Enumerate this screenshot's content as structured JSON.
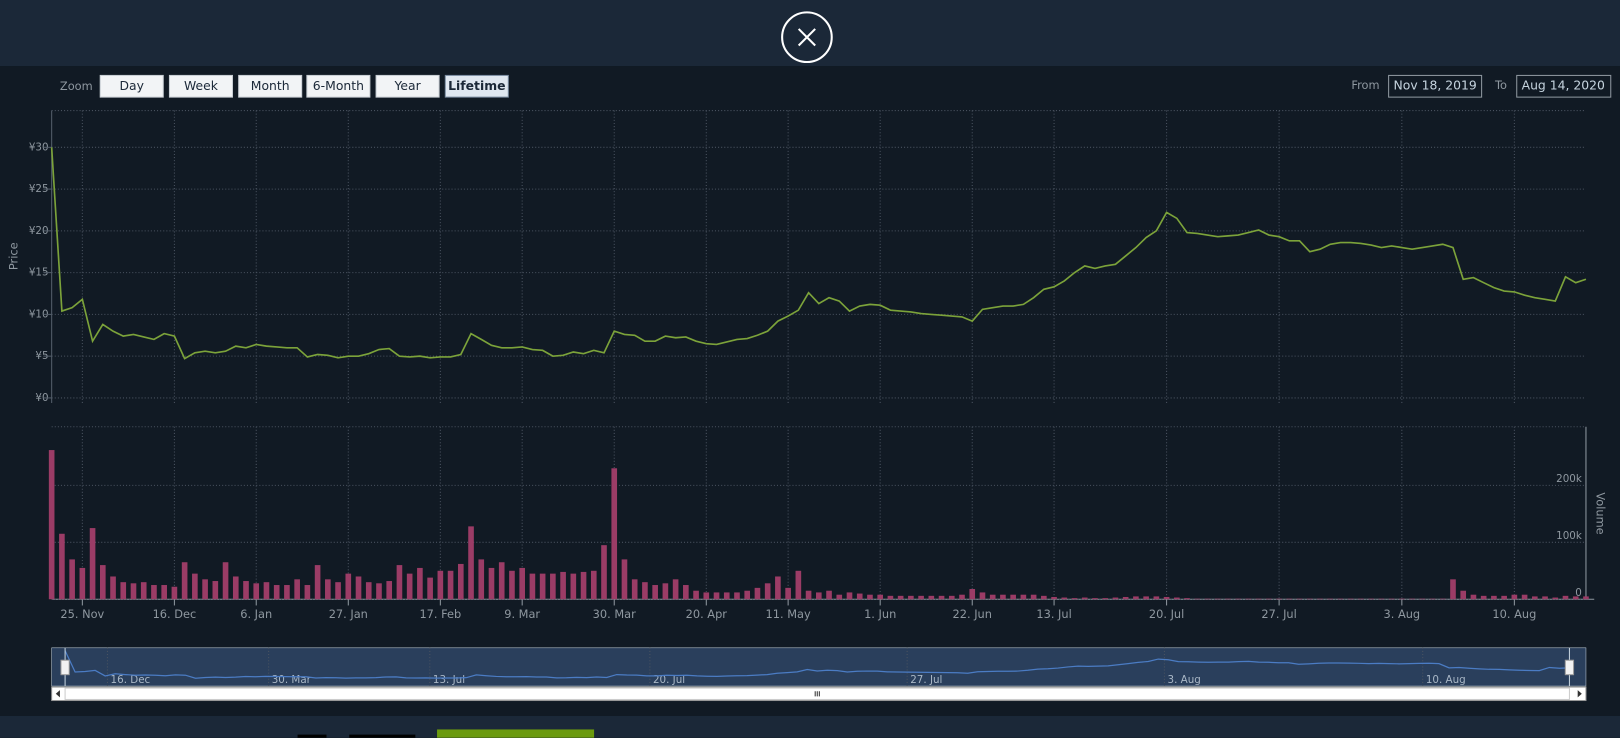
{
  "zoom": {
    "label": "Zoom",
    "buttons": [
      "Day",
      "Week",
      "Month",
      "6-Month",
      "Year",
      "Lifetime"
    ],
    "active": 5
  },
  "range": {
    "from_label": "From",
    "from": "Nov 18, 2019",
    "to_label": "To",
    "to": "Aug 14, 2020"
  },
  "chart_data": {
    "type": "stock",
    "y_label": "Price",
    "y2_label": "Volume",
    "grid": true,
    "categories": [
      null,
      null,
      null,
      "25. Nov",
      null,
      null,
      null,
      null,
      null,
      null,
      null,
      null,
      "16. Dec",
      null,
      null,
      null,
      null,
      null,
      null,
      null,
      "6. Jan",
      null,
      null,
      null,
      null,
      null,
      null,
      null,
      null,
      "27. Jan",
      null,
      null,
      null,
      null,
      null,
      null,
      null,
      null,
      "17. Feb",
      null,
      null,
      null,
      null,
      null,
      null,
      null,
      "9. Mar",
      null,
      null,
      null,
      null,
      null,
      null,
      null,
      null,
      "30. Mar",
      null,
      null,
      null,
      null,
      null,
      null,
      null,
      null,
      "20. Apr",
      null,
      null,
      null,
      null,
      null,
      null,
      null,
      "11. May",
      null,
      null,
      null,
      null,
      null,
      null,
      null,
      null,
      "1. Jun",
      null,
      null,
      null,
      null,
      null,
      null,
      null,
      null,
      "22. Jun",
      null,
      null,
      null,
      null,
      null,
      null,
      null,
      "13. Jul",
      null,
      null,
      null,
      null,
      null,
      null,
      null,
      null,
      null,
      null,
      "20. Jul",
      null,
      null,
      null,
      null,
      null,
      null,
      null,
      null,
      null,
      null,
      "27. Jul",
      null,
      null,
      null,
      null,
      null,
      null,
      null,
      null,
      null,
      null,
      null,
      "3. Aug",
      null,
      null,
      null,
      null,
      null,
      null,
      null,
      null,
      null,
      null,
      "10. Aug",
      null,
      null,
      null,
      null,
      null,
      null,
      null
    ],
    "ylim": [
      -0.6,
      34.4
    ],
    "yticks": [
      {
        "value": 0,
        "label": "¥0"
      },
      {
        "value": 5,
        "label": "¥5"
      },
      {
        "value": 10,
        "label": "¥10"
      },
      {
        "value": 15,
        "label": "¥15"
      },
      {
        "value": 20,
        "label": "¥20"
      },
      {
        "value": 25,
        "label": "¥25"
      },
      {
        "value": 30,
        "label": "¥30"
      }
    ],
    "y2lim": [
      0,
      303000
    ],
    "y2ticks": [
      0,
      {
        "value": 100000,
        "label": "100k"
      },
      {
        "value": 200000,
        "label": "200k"
      }
    ],
    "series": [
      {
        "type": "line",
        "color": "#7ca33a",
        "values": [
          30,
          10.4,
          10.8,
          11.8,
          6.8,
          8.8,
          8,
          7.4,
          7.6,
          7.3,
          7,
          7.7,
          7.4,
          4.7,
          5.4,
          5.6,
          5.4,
          5.6,
          6.2,
          6,
          6.4,
          6.2,
          6.1,
          6,
          6,
          4.9,
          5.2,
          5.1,
          4.8,
          5,
          5,
          5.3,
          5.8,
          5.9,
          5,
          4.9,
          5,
          4.8,
          4.9,
          4.9,
          5.2,
          7.7,
          7,
          6.3,
          6,
          6,
          6.1,
          5.8,
          5.7,
          5,
          5.1,
          5.5,
          5.3,
          5.7,
          5.4,
          8,
          7.6,
          7.5,
          6.8,
          6.8,
          7.4,
          7.2,
          7.3,
          6.8,
          6.5,
          6.4,
          6.7,
          7,
          7.1,
          7.5,
          8,
          9.2,
          9.8,
          10.5,
          12.6,
          11.3,
          12,
          11.6,
          10.4,
          11,
          11.2,
          11.1,
          10.5,
          10.4,
          10.3,
          10.1,
          10,
          9.9,
          9.8,
          9.7,
          9.2,
          10.6,
          10.8,
          11,
          11,
          11.2,
          12,
          13,
          13.3,
          14,
          15,
          15.8,
          15.5,
          15.8,
          16,
          17,
          18,
          19.2,
          20,
          22.2,
          21.5,
          19.8,
          19.7,
          19.5,
          19.3,
          19.4,
          19.5,
          19.8,
          20.1,
          19.5,
          19.3,
          18.8,
          18.8,
          17.5,
          17.8,
          18.4,
          18.6,
          18.6,
          18.5,
          18.3,
          18,
          18.2,
          18,
          17.8,
          18,
          18.2,
          18.4,
          18,
          14.2,
          14.4,
          13.8,
          13.2,
          12.8,
          12.7,
          12.3,
          12,
          11.8,
          11.6,
          14.5,
          13.8,
          14.2
        ]
      },
      {
        "type": "bar",
        "axis": "y2",
        "color": "#9b3c66",
        "values": [
          262000,
          115000,
          70000,
          55000,
          125000,
          60000,
          40000,
          30000,
          28000,
          30000,
          25000,
          25000,
          22000,
          65000,
          45000,
          35000,
          32000,
          65000,
          40000,
          32000,
          28000,
          30000,
          25000,
          25000,
          35000,
          25000,
          60000,
          35000,
          30000,
          45000,
          40000,
          30000,
          28000,
          32000,
          60000,
          45000,
          55000,
          38000,
          50000,
          50000,
          62000,
          128000,
          70000,
          55000,
          65000,
          50000,
          55000,
          45000,
          45000,
          45000,
          48000,
          45000,
          48000,
          50000,
          95000,
          230000,
          70000,
          35000,
          30000,
          25000,
          28000,
          35000,
          25000,
          15000,
          12000,
          12000,
          12000,
          12000,
          15000,
          20000,
          28000,
          40000,
          20000,
          50000,
          15000,
          12000,
          15000,
          8000,
          12000,
          10000,
          8000,
          8000,
          6000,
          6000,
          6000,
          6000,
          6000,
          6000,
          6000,
          8000,
          18000,
          12000,
          8000,
          8000,
          8000,
          8000,
          8000,
          6000,
          4000,
          3000,
          2000,
          3000,
          2000,
          2000,
          3000,
          4000,
          5000,
          5000,
          5000,
          4000,
          3000,
          2000,
          1000,
          1000,
          1000,
          1000,
          1000,
          1000,
          1000,
          1000,
          1000,
          1000,
          1000,
          1000,
          1000,
          1000,
          1000,
          1000,
          1000,
          1000,
          1000,
          1000,
          1000,
          1000,
          1000,
          1000,
          1000,
          35000,
          15000,
          8000,
          6000,
          6000,
          6000,
          8000,
          8000,
          5000,
          5000,
          3000,
          6000,
          5000,
          5000
        ]
      }
    ]
  },
  "navigator": {
    "labels": [
      "16. Dec",
      "30. Mar",
      "13. Jul",
      "20. Jul",
      "27. Jul",
      "3. Aug",
      "10. Aug"
    ]
  }
}
